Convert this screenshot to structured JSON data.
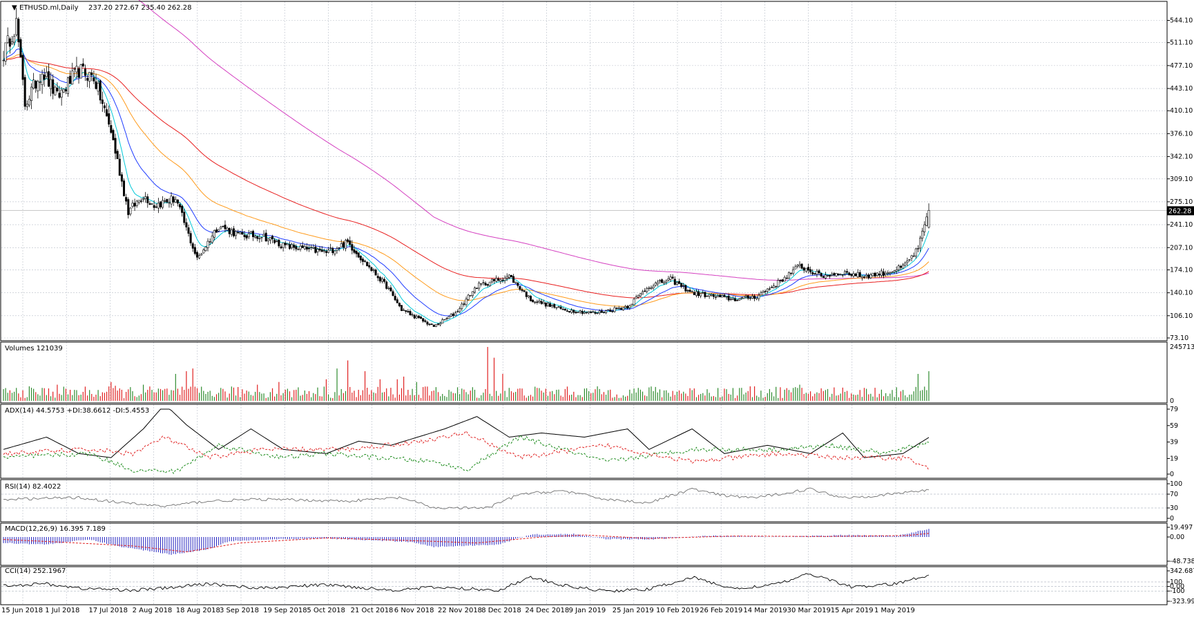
{
  "colors": {
    "bull": "#2e8b2e",
    "bear": "#e02020",
    "candle_outline": "#000000",
    "ma_fast": "#00c8d8",
    "ma_mid": "#1f3cff",
    "ma_slow": "#ff9a1a",
    "ma_100": "#e81e1e",
    "ma_200": "#d43fc0",
    "adx": "#000000",
    "plus_di": "#1a8a1a",
    "minus_di": "#e02020",
    "rsi": "#707070",
    "macd_hist": "#2626c0",
    "macd_signal": "#e02020",
    "cci": "#000000",
    "grid": "#b8bec8",
    "price_marker_bg": "#000000"
  },
  "header": {
    "arrow_icon": "triangle-down-icon",
    "symbol": "ETHUSD.ml,Daily",
    "ohlc": "237.20 272.67 235.40 262.28"
  },
  "price_marker": "262.28",
  "chart_data": [
    {
      "type": "candlestick",
      "title": "ETHUSD.ml,Daily",
      "ylim": [
        73.1,
        560
      ],
      "y_ticks": [
        "544.10",
        "511.10",
        "477.10",
        "443.10",
        "410.10",
        "376.10",
        "342.10",
        "309.10",
        "275.10",
        "241.10",
        "207.10",
        "174.10",
        "140.10",
        "106.10",
        "73.10"
      ],
      "last_price": 262.28,
      "moving_averages": [
        "ma_fast",
        "ma_mid",
        "ma_slow",
        "ma_100",
        "ma_200"
      ],
      "x_labels": [
        "15 Jun 2018",
        "1 Jul 2018",
        "17 Jul 2018",
        "2 Aug 2018",
        "18 Aug 2018",
        "3 Sep 2018",
        "19 Sep 2018",
        "5 Oct 2018",
        "21 Oct 2018",
        "6 Nov 2018",
        "22 Nov 2018",
        "8 Dec 2018",
        "24 Dec 2018",
        "9 Jan 2019",
        "25 Jan 2019",
        "10 Feb 2019",
        "26 Feb 2019",
        "14 Mar 2019",
        "30 Mar 2019",
        "15 Apr 2019",
        "1 May 2019"
      ],
      "anchors": [
        [
          0,
          495
        ],
        [
          6,
          540
        ],
        [
          10,
          420
        ],
        [
          18,
          470
        ],
        [
          25,
          430
        ],
        [
          35,
          470
        ],
        [
          42,
          460
        ],
        [
          50,
          380
        ],
        [
          58,
          260
        ],
        [
          65,
          285
        ],
        [
          70,
          270
        ],
        [
          80,
          280
        ],
        [
          90,
          190
        ],
        [
          100,
          240
        ],
        [
          110,
          225
        ],
        [
          120,
          225
        ],
        [
          130,
          210
        ],
        [
          140,
          205
        ],
        [
          150,
          200
        ],
        [
          160,
          215
        ],
        [
          168,
          185
        ],
        [
          178,
          150
        ],
        [
          185,
          115
        ],
        [
          200,
          90
        ],
        [
          210,
          110
        ],
        [
          220,
          150
        ],
        [
          235,
          165
        ],
        [
          245,
          130
        ],
        [
          260,
          115
        ],
        [
          275,
          110
        ],
        [
          290,
          120
        ],
        [
          300,
          150
        ],
        [
          310,
          160
        ],
        [
          320,
          140
        ],
        [
          340,
          130
        ],
        [
          350,
          135
        ],
        [
          360,
          155
        ],
        [
          370,
          180
        ],
        [
          380,
          165
        ],
        [
          390,
          170
        ],
        [
          400,
          165
        ],
        [
          410,
          170
        ],
        [
          418,
          178
        ],
        [
          425,
          205
        ],
        [
          430,
          262.28
        ]
      ]
    },
    {
      "type": "bar",
      "title": "Volumes 121039",
      "ylim": [
        0,
        245713
      ],
      "y_ticks": [
        "245713",
        "0"
      ],
      "spikes": [
        [
          25,
          0.3
        ],
        [
          50,
          0.35
        ],
        [
          52,
          0.28
        ],
        [
          65,
          0.3
        ],
        [
          80,
          0.5
        ],
        [
          85,
          0.55
        ],
        [
          88,
          0.6
        ],
        [
          118,
          0.3
        ],
        [
          128,
          0.35
        ],
        [
          150,
          0.4
        ],
        [
          155,
          0.6
        ],
        [
          160,
          0.75
        ],
        [
          168,
          0.55
        ],
        [
          175,
          0.4
        ],
        [
          183,
          0.4
        ],
        [
          186,
          0.45
        ],
        [
          192,
          0.35
        ],
        [
          225,
          1.0
        ],
        [
          228,
          0.8
        ],
        [
          232,
          0.5
        ],
        [
          300,
          0.25
        ],
        [
          370,
          0.3
        ],
        [
          425,
          0.5
        ],
        [
          430,
          0.55
        ]
      ]
    },
    {
      "type": "line",
      "title": "ADX(14) 44.5753 +DI:38.6612 -DI:5.4553",
      "ylim": [
        0,
        79
      ],
      "y_ticks": [
        "79",
        "59",
        "39",
        "19",
        "0"
      ],
      "series": [
        {
          "name": "ADX",
          "values_anchor": [
            [
              0,
              30
            ],
            [
              20,
              45
            ],
            [
              35,
              25
            ],
            [
              50,
              20
            ],
            [
              65,
              55
            ],
            [
              75,
              85
            ],
            [
              85,
              60
            ],
            [
              100,
              30
            ],
            [
              115,
              55
            ],
            [
              130,
              30
            ],
            [
              150,
              25
            ],
            [
              165,
              40
            ],
            [
              180,
              35
            ],
            [
              205,
              55
            ],
            [
              220,
              70
            ],
            [
              235,
              45
            ],
            [
              250,
              50
            ],
            [
              270,
              45
            ],
            [
              290,
              55
            ],
            [
              300,
              30
            ],
            [
              320,
              55
            ],
            [
              335,
              25
            ],
            [
              355,
              35
            ],
            [
              375,
              25
            ],
            [
              390,
              50
            ],
            [
              400,
              20
            ],
            [
              418,
              25
            ],
            [
              430,
              44.6
            ]
          ]
        },
        {
          "name": "+DI",
          "values_anchor": [
            [
              0,
              20
            ],
            [
              40,
              25
            ],
            [
              60,
              5
            ],
            [
              80,
              3
            ],
            [
              100,
              35
            ],
            [
              130,
              20
            ],
            [
              150,
              25
            ],
            [
              175,
              20
            ],
            [
              200,
              15
            ],
            [
              215,
              5
            ],
            [
              240,
              45
            ],
            [
              280,
              15
            ],
            [
              320,
              30
            ],
            [
              360,
              30
            ],
            [
              385,
              35
            ],
            [
              410,
              25
            ],
            [
              430,
              38.7
            ]
          ]
        },
        {
          "name": "-DI",
          "values_anchor": [
            [
              0,
              25
            ],
            [
              40,
              30
            ],
            [
              60,
              25
            ],
            [
              75,
              45
            ],
            [
              95,
              20
            ],
            [
              120,
              30
            ],
            [
              160,
              30
            ],
            [
              195,
              40
            ],
            [
              215,
              50
            ],
            [
              240,
              20
            ],
            [
              280,
              35
            ],
            [
              320,
              15
            ],
            [
              360,
              25
            ],
            [
              390,
              20
            ],
            [
              420,
              20
            ],
            [
              430,
              5.5
            ]
          ]
        }
      ]
    },
    {
      "type": "line",
      "title": "RSI(14) 82.4022",
      "ylim": [
        0,
        100
      ],
      "y_ticks": [
        "100",
        "70",
        "30",
        "0"
      ],
      "series": [
        {
          "name": "RSI",
          "values_anchor": [
            [
              0,
              55
            ],
            [
              35,
              60
            ],
            [
              55,
              45
            ],
            [
              75,
              35
            ],
            [
              95,
              50
            ],
            [
              120,
              55
            ],
            [
              160,
              50
            ],
            [
              185,
              60
            ],
            [
              200,
              30
            ],
            [
              225,
              30
            ],
            [
              240,
              70
            ],
            [
              260,
              80
            ],
            [
              280,
              55
            ],
            [
              300,
              45
            ],
            [
              320,
              85
            ],
            [
              335,
              65
            ],
            [
              350,
              60
            ],
            [
              375,
              85
            ],
            [
              390,
              60
            ],
            [
              405,
              65
            ],
            [
              430,
              82.4
            ]
          ]
        }
      ]
    },
    {
      "type": "bar",
      "title": "MACD(12,26,9) 16.395 7.189",
      "ylim": [
        -48.738,
        19.497
      ],
      "y_ticks": [
        "19.497",
        "0.00",
        "-48.738"
      ],
      "series": [
        {
          "name": "MACD",
          "values_anchor": [
            [
              0,
              -12
            ],
            [
              20,
              -15
            ],
            [
              40,
              -5
            ],
            [
              55,
              -20
            ],
            [
              78,
              -35
            ],
            [
              95,
              -25
            ],
            [
              105,
              -8
            ],
            [
              125,
              -5
            ],
            [
              150,
              -3
            ],
            [
              190,
              -10
            ],
            [
              200,
              -20
            ],
            [
              230,
              -15
            ],
            [
              245,
              5
            ],
            [
              265,
              6
            ],
            [
              280,
              -4
            ],
            [
              300,
              -5
            ],
            [
              330,
              3
            ],
            [
              360,
              0
            ],
            [
              390,
              4
            ],
            [
              415,
              2
            ],
            [
              430,
              16.4
            ]
          ]
        },
        {
          "name": "Signal",
          "values_anchor": [
            [
              0,
              -5
            ],
            [
              25,
              -10
            ],
            [
              60,
              -18
            ],
            [
              85,
              -30
            ],
            [
              110,
              -12
            ],
            [
              150,
              -2
            ],
            [
              195,
              -8
            ],
            [
              220,
              -12
            ],
            [
              250,
              0
            ],
            [
              270,
              4
            ],
            [
              300,
              -3
            ],
            [
              340,
              2
            ],
            [
              380,
              1
            ],
            [
              420,
              3
            ],
            [
              430,
              7.2
            ]
          ]
        }
      ]
    },
    {
      "type": "line",
      "title": "CCI(14) 252.1967",
      "ylim": [
        -323.995,
        342.6877
      ],
      "y_ticks": [
        "342.6877",
        "100",
        "0.00",
        "-100",
        "-323.995"
      ],
      "series": [
        {
          "name": "CCI",
          "values_anchor": [
            [
              0,
              20
            ],
            [
              20,
              60
            ],
            [
              35,
              -40
            ],
            [
              60,
              -80
            ],
            [
              75,
              -40
            ],
            [
              95,
              60
            ],
            [
              120,
              -40
            ],
            [
              150,
              40
            ],
            [
              180,
              -80
            ],
            [
              200,
              -20
            ],
            [
              230,
              -80
            ],
            [
              245,
              200
            ],
            [
              260,
              20
            ],
            [
              280,
              -100
            ],
            [
              300,
              -60
            ],
            [
              320,
              200
            ],
            [
              340,
              -60
            ],
            [
              360,
              60
            ],
            [
              375,
              280
            ],
            [
              395,
              -20
            ],
            [
              415,
              60
            ],
            [
              430,
              252.2
            ]
          ]
        }
      ]
    }
  ]
}
